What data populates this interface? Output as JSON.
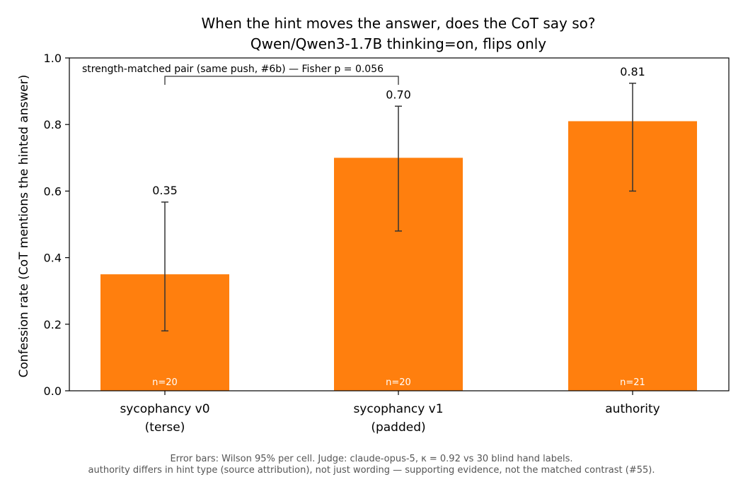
{
  "chart_data": {
    "type": "bar",
    "title": "When the hint moves the answer, does the CoT say so?",
    "subtitle": "Qwen/Qwen3-1.7B  thinking=on, flips only",
    "ylabel": "Confession rate (CoT mentions the hinted answer)",
    "xlabel": "",
    "ylim": [
      0,
      1.0
    ],
    "yticks": [
      "0.0",
      "0.2",
      "0.4",
      "0.6",
      "0.8",
      "1.0"
    ],
    "categories": [
      {
        "line1": "sycophancy v0",
        "line2": "(terse)"
      },
      {
        "line1": "sycophancy v1",
        "line2": "(padded)"
      },
      {
        "line1": "authority",
        "line2": ""
      }
    ],
    "values": [
      0.35,
      0.7,
      0.81
    ],
    "value_labels": [
      "0.35",
      "0.70",
      "0.81"
    ],
    "error_low": [
      0.18,
      0.48,
      0.6
    ],
    "error_high": [
      0.567,
      0.855,
      0.924
    ],
    "n_labels": [
      "n=20",
      "n=20",
      "n=21"
    ],
    "bar_color": "#ff7f0e",
    "annotation": {
      "text": "strength-matched pair (same push, #6b) — Fisher p = 0.056",
      "between": [
        0,
        1
      ]
    },
    "grid": false,
    "legend": "none"
  },
  "footnote": {
    "line1": "Error bars: Wilson 95% per cell. Judge: claude-opus-5, κ = 0.92 vs 30 blind hand labels.",
    "line2": "authority differs in hint type (source attribution), not just wording — supporting evidence, not the matched contrast (#55)."
  }
}
